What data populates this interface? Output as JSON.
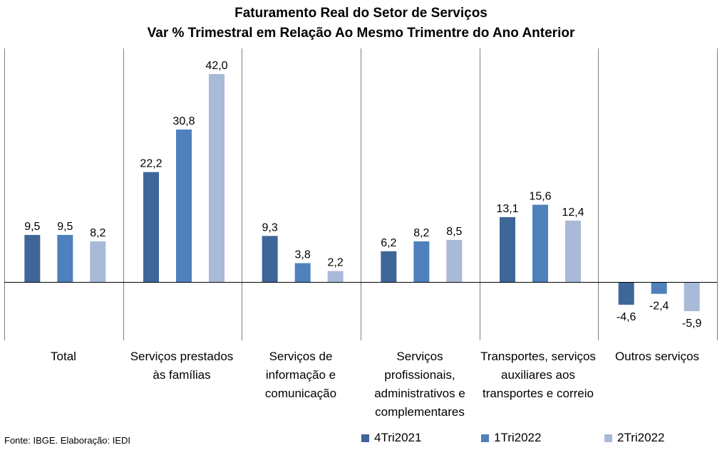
{
  "chart_data": {
    "type": "bar",
    "title": "Faturamento Real do Setor de Serviços",
    "subtitle": "Var % Trimestral em Relação Ao Mesmo Trimentre do Ano Anterior",
    "categories": [
      "Total",
      "Serviços prestados às famílias",
      "Serviços de informação e comunicação",
      "Serviços profissionais, administrativos e complementares",
      "Transportes, serviços auxiliares aos transportes e correio",
      "Outros serviços"
    ],
    "series": [
      {
        "name": "4Tri2021",
        "color": "#3f6698",
        "values": [
          9.5,
          22.2,
          9.3,
          6.2,
          13.1,
          -4.6
        ],
        "labels": [
          "9,5",
          "22,2",
          "9,3",
          "6,2",
          "13,1",
          "-4,6"
        ]
      },
      {
        "name": "1Tri2022",
        "color": "#4f81bd",
        "values": [
          9.5,
          30.8,
          3.8,
          8.2,
          15.6,
          -2.4
        ],
        "labels": [
          "9,5",
          "30,8",
          "3,8",
          "8,2",
          "15,6",
          "-2,4"
        ]
      },
      {
        "name": "2Tri2022",
        "color": "#a9b9d8",
        "values": [
          8.2,
          42.0,
          2.2,
          8.5,
          12.4,
          -5.9
        ],
        "labels": [
          "8,2",
          "42,0",
          "2,2",
          "8,5",
          "12,4",
          "-5,9"
        ]
      }
    ],
    "ylim": [
      -10,
      45
    ],
    "grid": false,
    "category_separators": true,
    "legend_position": "bottom-right"
  },
  "source_note": "Fonte: IBGE. Elaboração: IEDI"
}
